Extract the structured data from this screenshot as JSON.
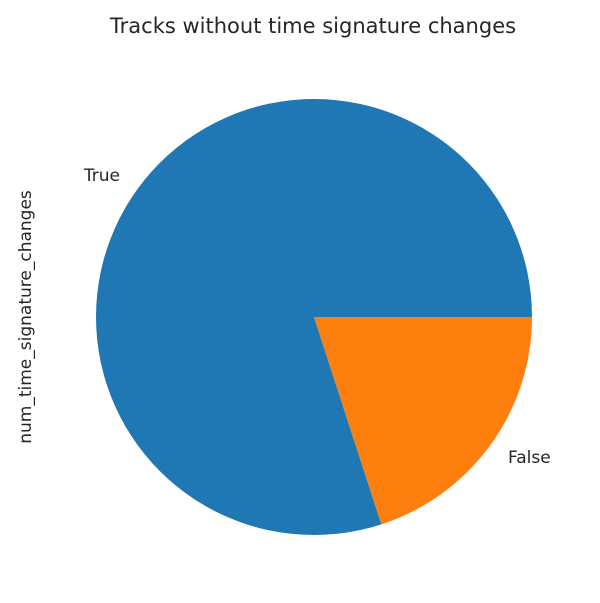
{
  "chart_data": {
    "type": "pie",
    "title": "Tracks without time signature changes",
    "ylabel": "num_time_signature_changes",
    "start_angle_deg": 0,
    "direction": "counterclockwise",
    "slices": [
      {
        "label": "True",
        "value": 0.8,
        "color": "#1f77b4"
      },
      {
        "label": "False",
        "value": 0.2,
        "color": "#ff7f0e"
      }
    ]
  }
}
